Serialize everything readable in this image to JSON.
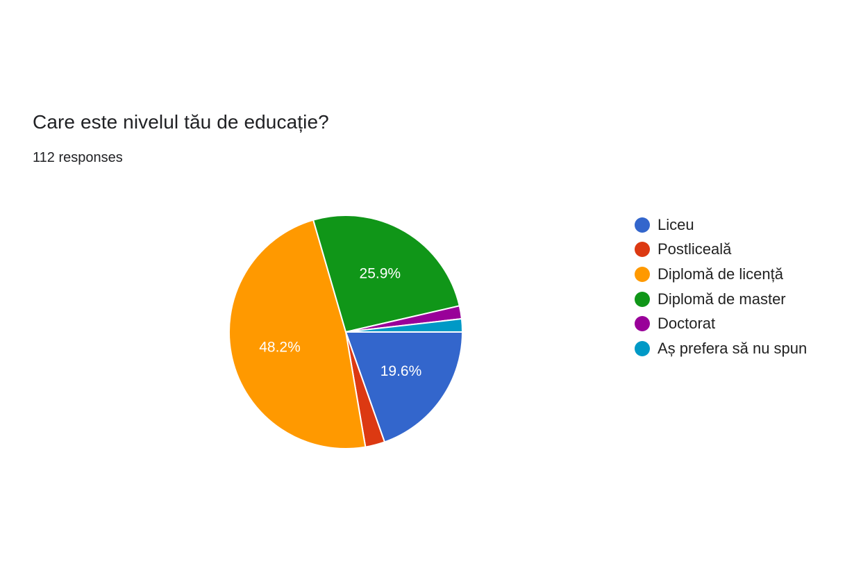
{
  "question": {
    "title": "Care este nivelul tău de educație?",
    "responses": "112 responses"
  },
  "chart_data": {
    "type": "pie",
    "title": "Care este nivelul tău de educație?",
    "total_responses": 112,
    "start_direction": "clockwise from right",
    "slices": [
      {
        "label": "Liceu",
        "value": 19.6,
        "color": "#3366cc",
        "data_label": "19.6%"
      },
      {
        "label": "Postliceală",
        "value": 2.7,
        "color": "#dc3912",
        "data_label": ""
      },
      {
        "label": "Diplomă de licență",
        "value": 48.2,
        "color": "#ff9900",
        "data_label": "48.2%"
      },
      {
        "label": "Diplomă de master",
        "value": 25.9,
        "color": "#109618",
        "data_label": "25.9%"
      },
      {
        "label": "Doctorat",
        "value": 1.8,
        "color": "#990099",
        "data_label": ""
      },
      {
        "label": "Aș prefera să nu spun",
        "value": 1.8,
        "color": "#0099c6",
        "data_label": ""
      }
    ],
    "legend_placement": "right"
  }
}
